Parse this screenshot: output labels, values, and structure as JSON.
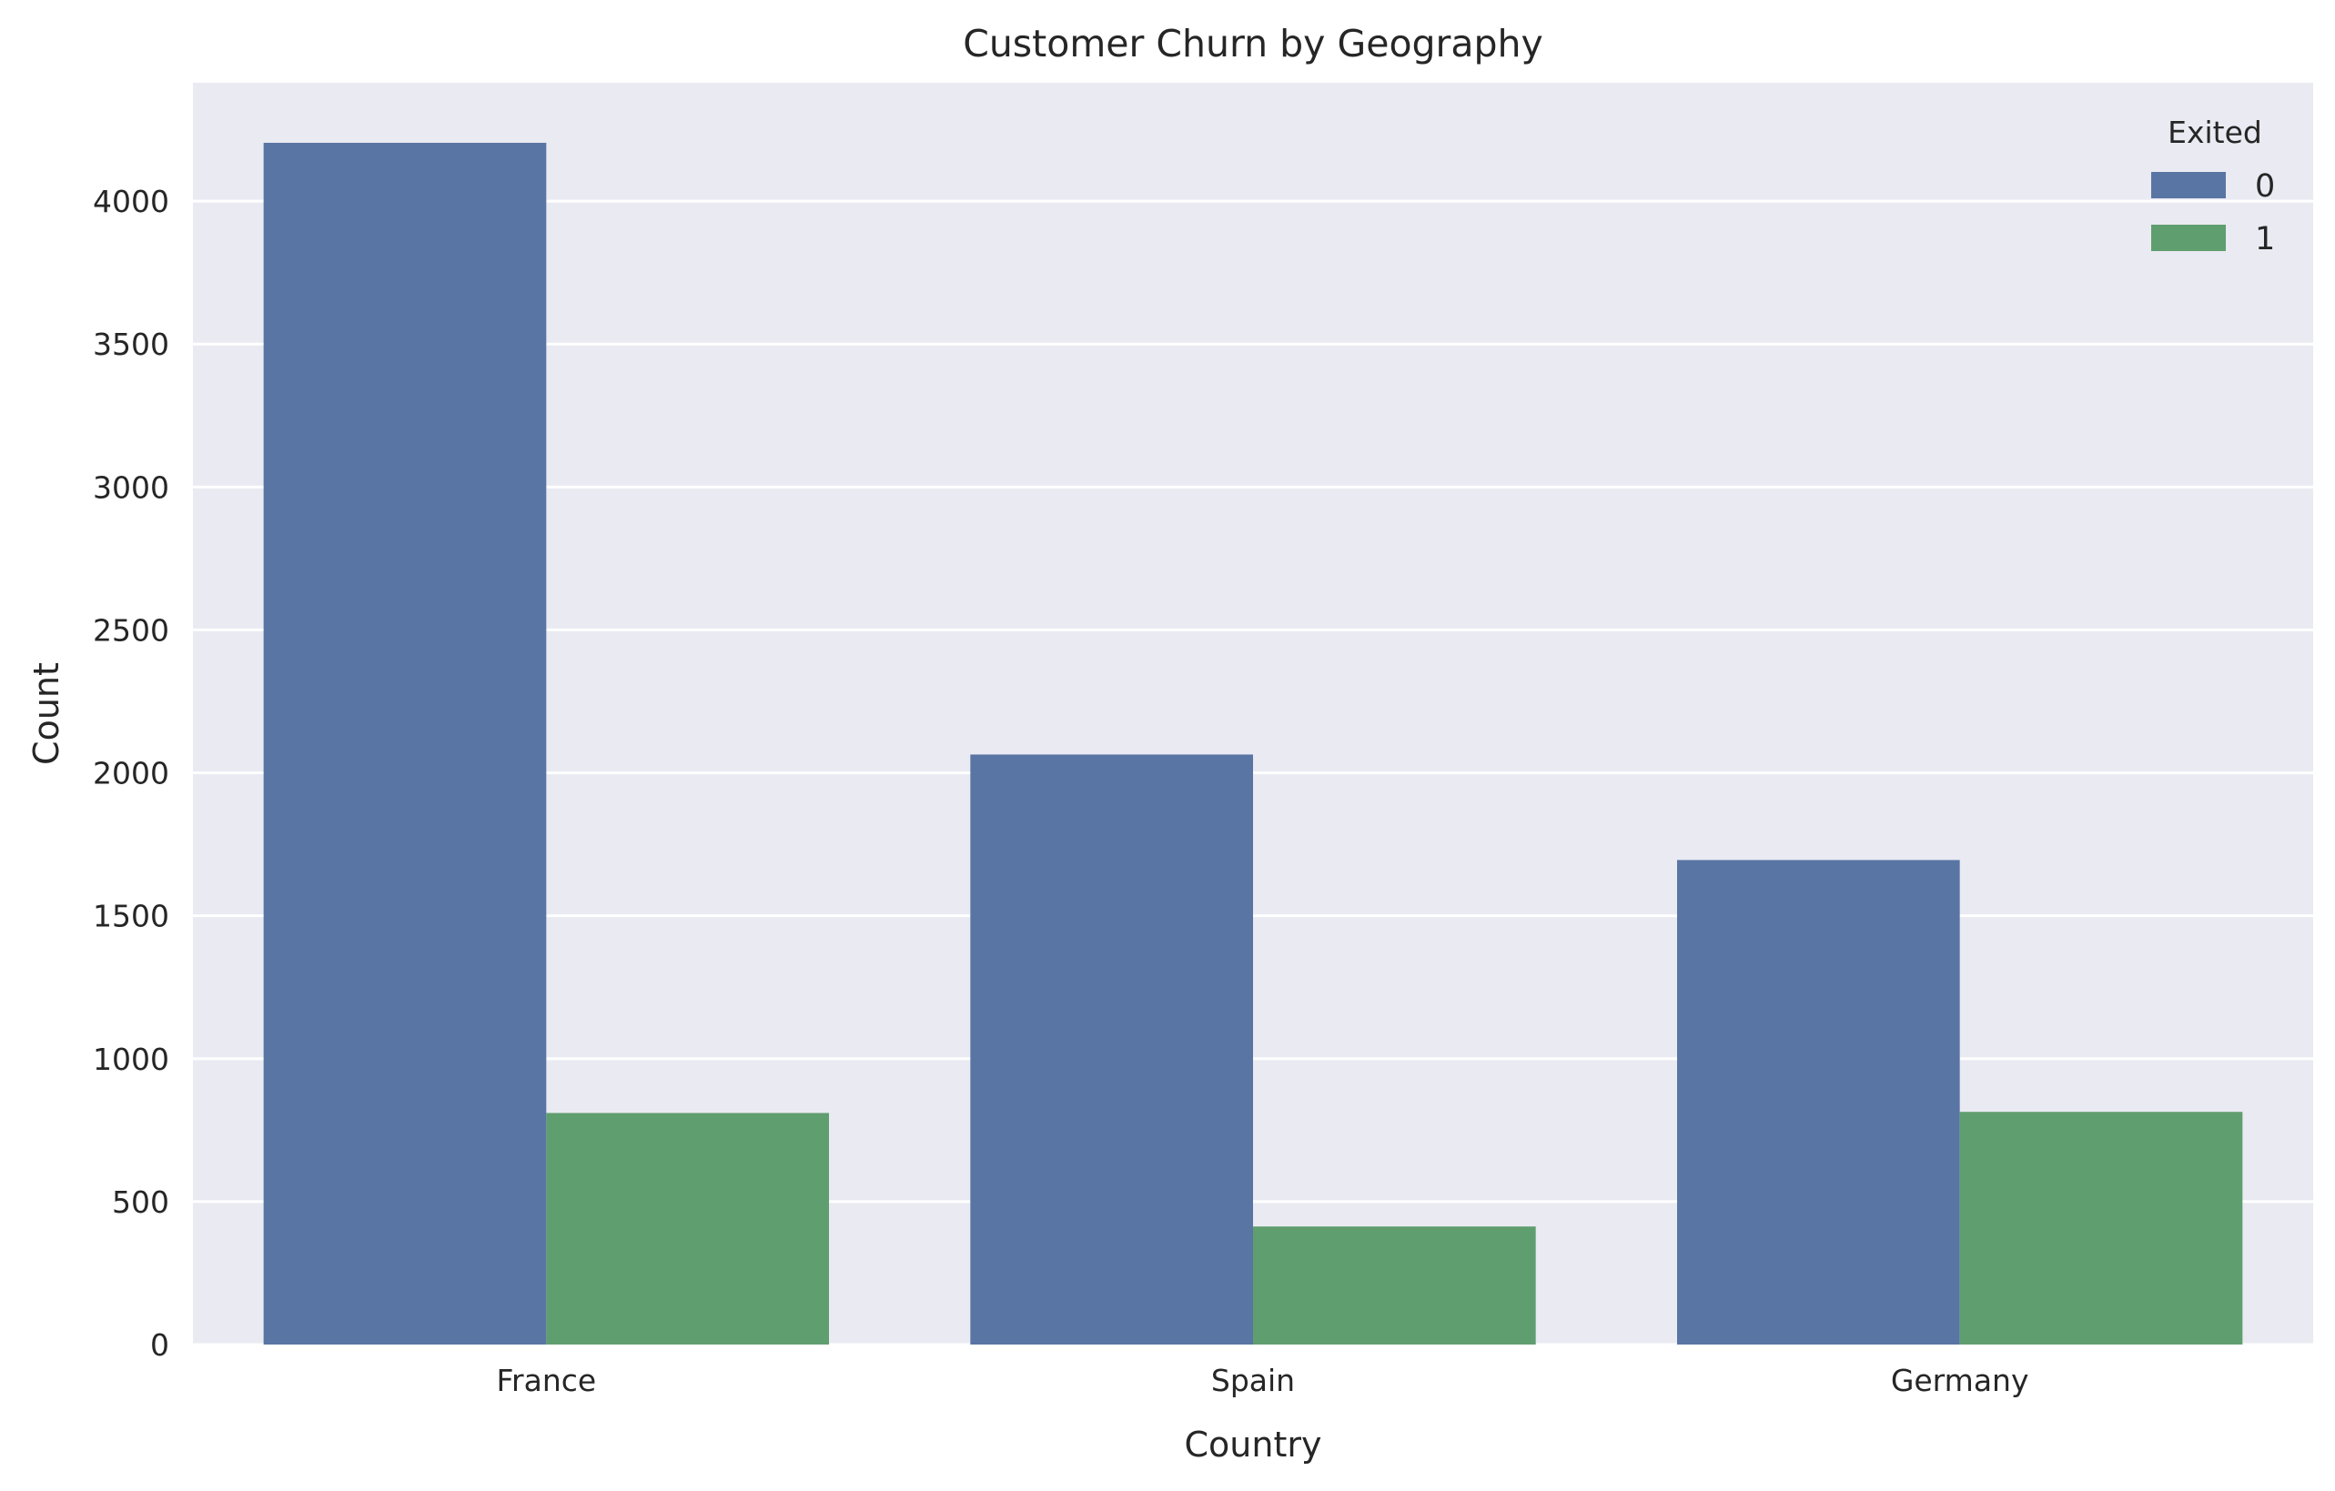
{
  "chart_data": {
    "type": "bar",
    "title": "Customer Churn by Geography",
    "xlabel": "Country",
    "ylabel": "Count",
    "categories": [
      "France",
      "Spain",
      "Germany"
    ],
    "series": [
      {
        "name": "0",
        "values": [
          4204,
          2064,
          1695
        ],
        "color": "#5975a4"
      },
      {
        "name": "1",
        "values": [
          810,
          413,
          814
        ],
        "color": "#5f9e6e"
      }
    ],
    "ylim": [
      0,
      4414
    ],
    "yticks": [
      0,
      500,
      1000,
      1500,
      2000,
      2500,
      3000,
      3500,
      4000
    ],
    "grid": true,
    "legend": {
      "title": "Exited",
      "position": "top-right"
    },
    "colors": {
      "plot_background": "#eaeaf2",
      "grid": "#ffffff",
      "text": "#262626"
    }
  }
}
